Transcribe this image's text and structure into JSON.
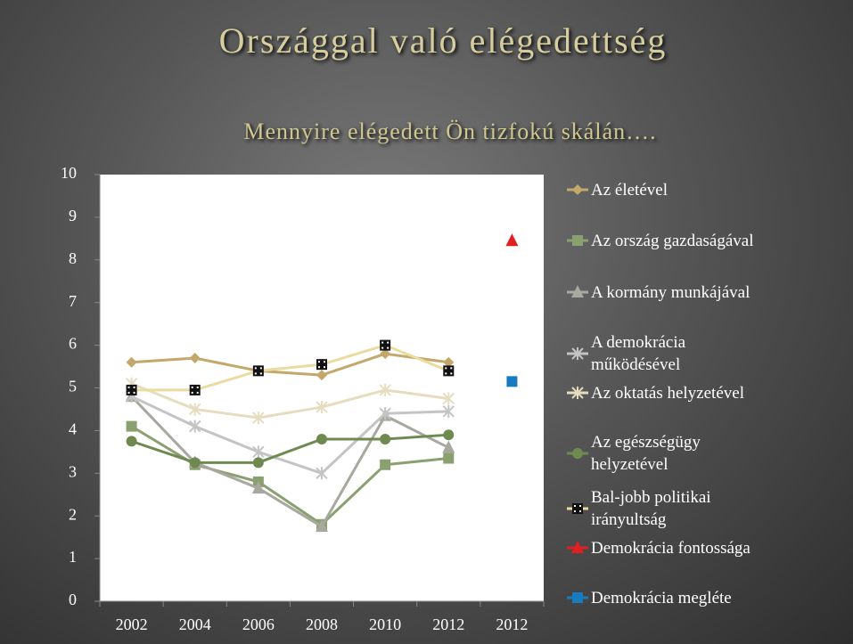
{
  "chart_data": {
    "type": "line",
    "title": "Országgal való elégedettség",
    "subtitle": "Mennyire elégedett Ön tizfokú skálán….",
    "categories": [
      "2002",
      "2004",
      "2006",
      "2008",
      "2010",
      "2012",
      "2012"
    ],
    "series": [
      {
        "name": "Az életével",
        "color": "#c4a76a",
        "marker": "diamond",
        "values": [
          5.6,
          5.7,
          5.4,
          5.3,
          5.8,
          5.6,
          null
        ]
      },
      {
        "name": "Az ország gazdaságával",
        "color": "#8aa070",
        "marker": "square",
        "values": [
          4.1,
          3.2,
          2.8,
          1.8,
          3.2,
          3.35,
          null
        ]
      },
      {
        "name": "A kormány munkájával",
        "color": "#a8a8a0",
        "marker": "triangle",
        "values": [
          4.8,
          3.25,
          2.65,
          1.75,
          4.35,
          3.6,
          null
        ]
      },
      {
        "name": "A demokrácia működésével",
        "color": "#c4c4c4",
        "marker": "star",
        "values": [
          4.8,
          4.1,
          3.5,
          3.0,
          4.4,
          4.45,
          null
        ]
      },
      {
        "name": "Az oktatás helyzetével",
        "color": "#e6dcc0",
        "marker": "star",
        "values": [
          5.1,
          4.5,
          4.3,
          4.55,
          4.95,
          4.75,
          null
        ]
      },
      {
        "name": "Az egészségügy helyzetével",
        "color": "#6f8a50",
        "marker": "circle",
        "values": [
          3.75,
          3.25,
          3.25,
          3.8,
          3.8,
          3.9,
          null
        ]
      },
      {
        "name": "Bal-jobb politikai irányultság",
        "color": "#eadca0",
        "marker": "dotted-square",
        "values": [
          4.95,
          4.95,
          5.4,
          5.55,
          6.0,
          5.4,
          null
        ]
      },
      {
        "name": "Demokrácia fontossága",
        "color": "#e02020",
        "marker": "triangle",
        "values": [
          null,
          null,
          null,
          null,
          null,
          null,
          8.45
        ]
      },
      {
        "name": "Demokrácia megléte",
        "color": "#1a7ac0",
        "marker": "square",
        "values": [
          null,
          null,
          null,
          null,
          null,
          null,
          5.15
        ]
      }
    ],
    "ylim": [
      0,
      10
    ],
    "yticks": [
      0,
      1,
      2,
      3,
      4,
      5,
      6,
      7,
      8,
      9,
      10
    ],
    "grid": false
  }
}
